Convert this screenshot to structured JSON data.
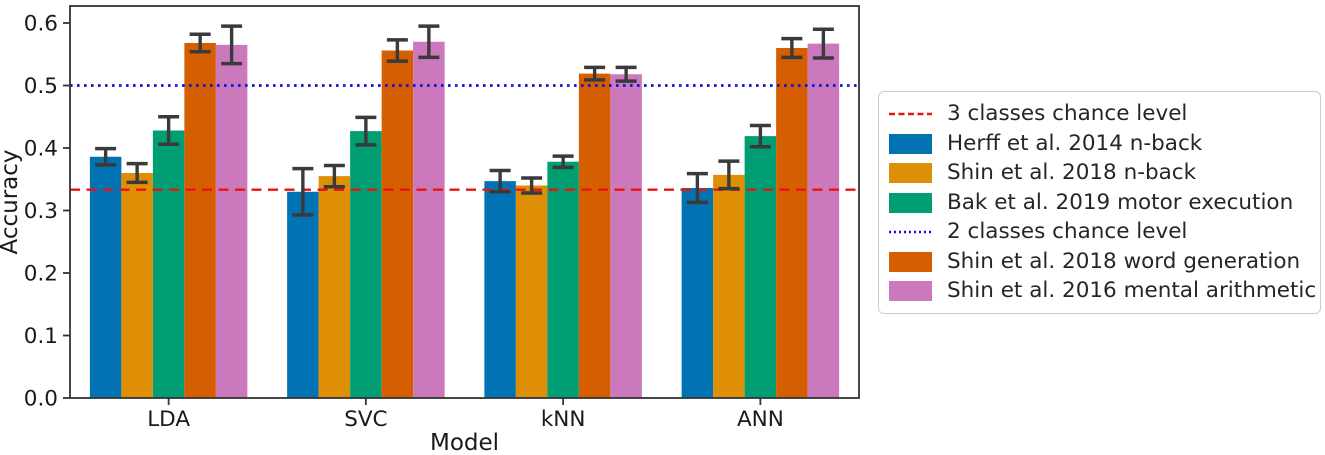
{
  "chart_data": {
    "type": "bar",
    "title": "",
    "xlabel": "Model",
    "ylabel": "Accuracy",
    "categories": [
      "LDA",
      "SVC",
      "kNN",
      "ANN"
    ],
    "ylim": [
      0.0,
      0.627
    ],
    "yticks": [
      0.0,
      0.1,
      0.2,
      0.3,
      0.4,
      0.5,
      0.6
    ],
    "grid": false,
    "legend_position": "outside-right",
    "series": [
      {
        "name": "Herff et al. 2014 n-back",
        "color": "#0173B2",
        "values": [
          0.386,
          0.33,
          0.347,
          0.336
        ],
        "errors": [
          0.013,
          0.037,
          0.017,
          0.023
        ]
      },
      {
        "name": "Shin et al. 2018 n-back",
        "color": "#DE8F05",
        "values": [
          0.36,
          0.355,
          0.34,
          0.357
        ],
        "errors": [
          0.015,
          0.017,
          0.012,
          0.022
        ]
      },
      {
        "name": "Bak et al. 2019 motor execution",
        "color": "#029E73",
        "values": [
          0.428,
          0.427,
          0.378,
          0.419
        ],
        "errors": [
          0.022,
          0.022,
          0.009,
          0.017
        ]
      },
      {
        "name": "Shin et al. 2018 word generation",
        "color": "#D55E00",
        "values": [
          0.568,
          0.556,
          0.519,
          0.56
        ],
        "errors": [
          0.014,
          0.017,
          0.01,
          0.015
        ]
      },
      {
        "name": "Shin et al. 2016 mental arithmetic",
        "color": "#CC78BC",
        "values": [
          0.565,
          0.57,
          0.518,
          0.567
        ],
        "errors": [
          0.03,
          0.025,
          0.011,
          0.023
        ]
      }
    ],
    "reference_lines": [
      {
        "name": "3 classes chance level",
        "value": 0.3333,
        "color": "#EC1212",
        "style": "dashed"
      },
      {
        "name": "2 classes chance level",
        "value": 0.5,
        "color": "#0F0FE0",
        "style": "dotted"
      }
    ],
    "error_bar_color": "#3A3A3A",
    "axis_color": "#333333",
    "text_color": "#1A1A1A"
  },
  "legend": {
    "items": [
      {
        "label": "3 classes chance level",
        "swatch": "dashed-line",
        "color": "#EC1212"
      },
      {
        "label": "Herff et al. 2014 n-back",
        "swatch": "patch",
        "color": "#0173B2"
      },
      {
        "label": "Shin et al. 2018 n-back",
        "swatch": "patch",
        "color": "#DE8F05"
      },
      {
        "label": "Bak et al. 2019 motor execution",
        "swatch": "patch",
        "color": "#029E73"
      },
      {
        "label": "2 classes chance level",
        "swatch": "dotted-line",
        "color": "#0F0FE0"
      },
      {
        "label": "Shin et al. 2018 word generation",
        "swatch": "patch",
        "color": "#D55E00"
      },
      {
        "label": "Shin et al. 2016 mental arithmetic",
        "swatch": "patch",
        "color": "#CC78BC"
      }
    ]
  }
}
